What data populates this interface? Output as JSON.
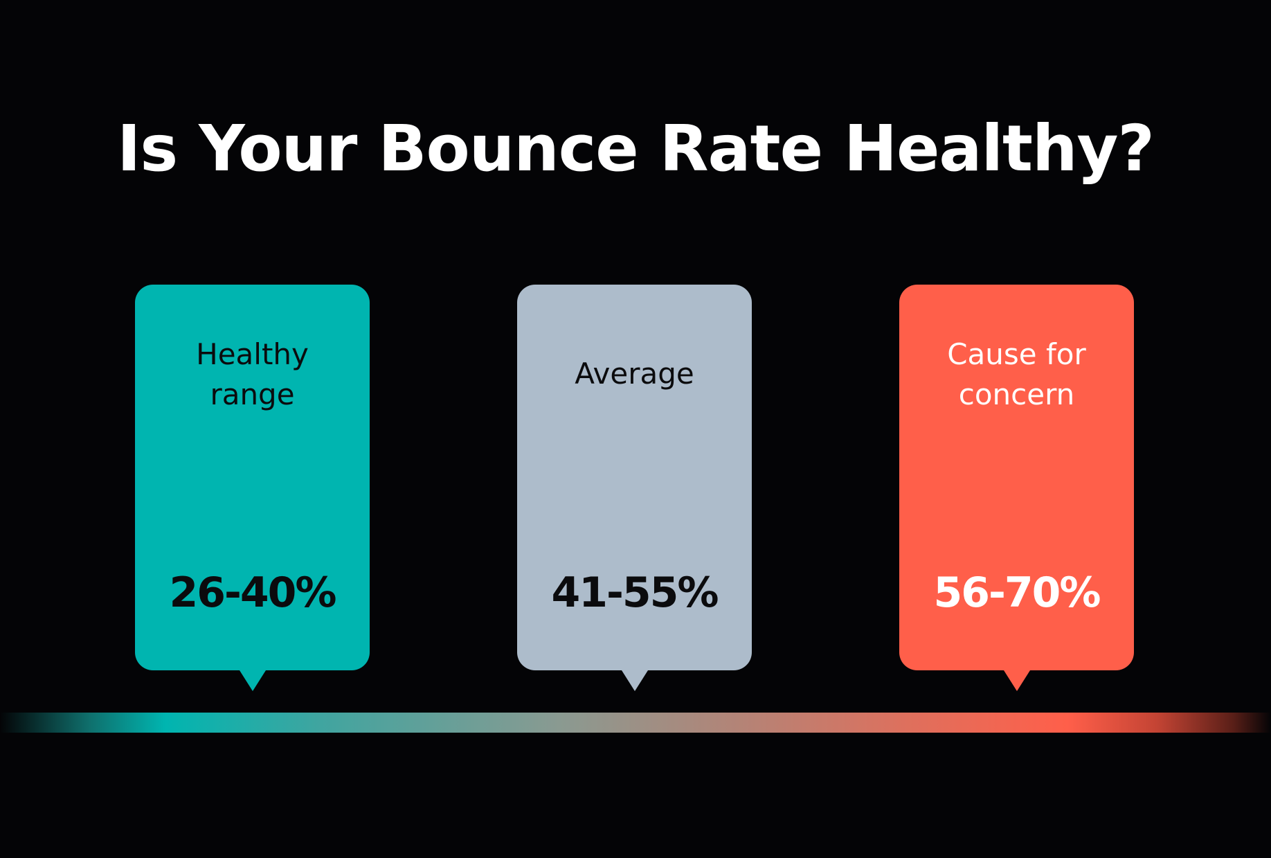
{
  "title": "Is Your Bounce Rate Healthy?",
  "cards": [
    {
      "label_lines": [
        "Healthy",
        "range"
      ],
      "range": "26-40%",
      "color": "#00b5b0"
    },
    {
      "label_lines": [
        "Average"
      ],
      "range": "41-55%",
      "color": "#adbccb"
    },
    {
      "label_lines": [
        "Cause for",
        "concern"
      ],
      "range": "56-70%",
      "color": "#ff5f4a"
    }
  ],
  "scale_colors": [
    "#00b5b0",
    "#adbccb",
    "#ff5f4a"
  ]
}
